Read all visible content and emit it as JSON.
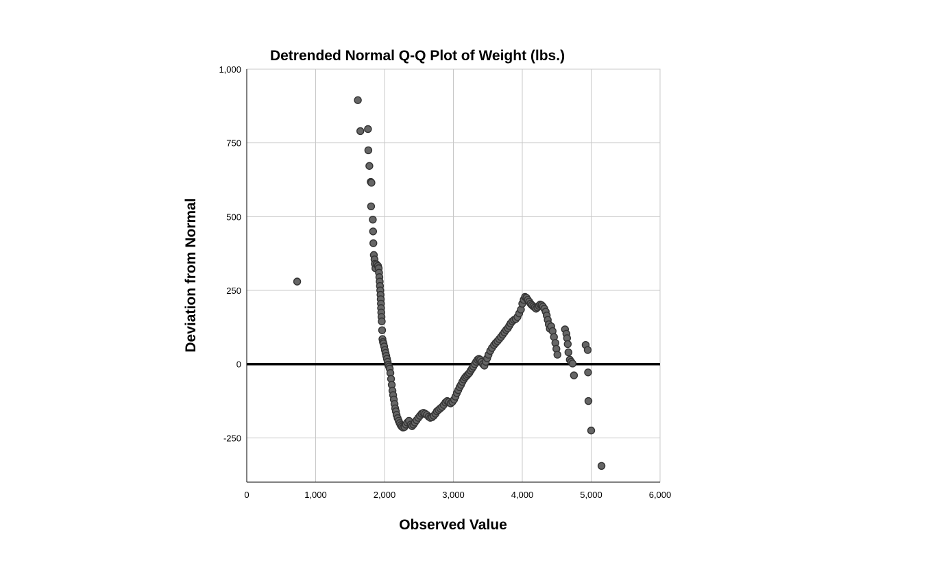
{
  "chart_data": {
    "type": "scatter",
    "title": "Detrended Normal Q-Q Plot of Weight (lbs.)",
    "xlabel": "Observed Value",
    "ylabel": "Deviation from Normal",
    "xlim": [
      0,
      6000
    ],
    "ylim": [
      -400,
      1000
    ],
    "xticks": [
      0,
      1000,
      2000,
      3000,
      4000,
      5000,
      6000
    ],
    "xtick_labels": [
      "0",
      "1,000",
      "2,000",
      "3,000",
      "4,000",
      "5,000",
      "6,000"
    ],
    "yticks": [
      -250,
      0,
      250,
      500,
      750,
      1000
    ],
    "ytick_labels": [
      "-250",
      "0",
      "250",
      "500",
      "750",
      "1,000"
    ],
    "grid": true,
    "reference_line_y": 0,
    "marker_color": "#666666",
    "marker_edge_color": "#333333",
    "points": [
      {
        "x": 732,
        "y": 280
      },
      {
        "x": 1613,
        "y": 895
      },
      {
        "x": 1649,
        "y": 790
      },
      {
        "x": 1760,
        "y": 797
      },
      {
        "x": 1765,
        "y": 725
      },
      {
        "x": 1780,
        "y": 672
      },
      {
        "x": 1800,
        "y": 618
      },
      {
        "x": 1810,
        "y": 615
      },
      {
        "x": 1805,
        "y": 535
      },
      {
        "x": 1830,
        "y": 490
      },
      {
        "x": 1834,
        "y": 450
      },
      {
        "x": 1838,
        "y": 410
      },
      {
        "x": 1845,
        "y": 370
      },
      {
        "x": 1855,
        "y": 355
      },
      {
        "x": 1860,
        "y": 340
      },
      {
        "x": 1868,
        "y": 325
      },
      {
        "x": 1885,
        "y": 338
      },
      {
        "x": 1905,
        "y": 333
      },
      {
        "x": 1915,
        "y": 325
      },
      {
        "x": 1920,
        "y": 310
      },
      {
        "x": 1925,
        "y": 295
      },
      {
        "x": 1930,
        "y": 280
      },
      {
        "x": 1934,
        "y": 265
      },
      {
        "x": 1938,
        "y": 250
      },
      {
        "x": 1942,
        "y": 235
      },
      {
        "x": 1945,
        "y": 220
      },
      {
        "x": 1948,
        "y": 205
      },
      {
        "x": 1950,
        "y": 190
      },
      {
        "x": 1953,
        "y": 175
      },
      {
        "x": 1956,
        "y": 160
      },
      {
        "x": 1960,
        "y": 145
      },
      {
        "x": 1965,
        "y": 115
      },
      {
        "x": 1970,
        "y": 85
      },
      {
        "x": 1978,
        "y": 75
      },
      {
        "x": 1985,
        "y": 70
      },
      {
        "x": 1995,
        "y": 60
      },
      {
        "x": 2005,
        "y": 48
      },
      {
        "x": 2015,
        "y": 38
      },
      {
        "x": 2025,
        "y": 28
      },
      {
        "x": 2035,
        "y": 18
      },
      {
        "x": 2045,
        "y": 8
      },
      {
        "x": 2055,
        "y": -2
      },
      {
        "x": 2065,
        "y": -8
      },
      {
        "x": 2075,
        "y": -15
      },
      {
        "x": 2085,
        "y": -30
      },
      {
        "x": 2095,
        "y": -50
      },
      {
        "x": 2105,
        "y": -70
      },
      {
        "x": 2115,
        "y": -90
      },
      {
        "x": 2125,
        "y": -105
      },
      {
        "x": 2135,
        "y": -120
      },
      {
        "x": 2145,
        "y": -135
      },
      {
        "x": 2155,
        "y": -150
      },
      {
        "x": 2165,
        "y": -160
      },
      {
        "x": 2175,
        "y": -172
      },
      {
        "x": 2190,
        "y": -183
      },
      {
        "x": 2205,
        "y": -192
      },
      {
        "x": 2220,
        "y": -200
      },
      {
        "x": 2235,
        "y": -207
      },
      {
        "x": 2250,
        "y": -212
      },
      {
        "x": 2270,
        "y": -215
      },
      {
        "x": 2290,
        "y": -213
      },
      {
        "x": 2310,
        "y": -205
      },
      {
        "x": 2330,
        "y": -198
      },
      {
        "x": 2355,
        "y": -192
      },
      {
        "x": 2380,
        "y": -205
      },
      {
        "x": 2400,
        "y": -210
      },
      {
        "x": 2420,
        "y": -205
      },
      {
        "x": 2440,
        "y": -198
      },
      {
        "x": 2465,
        "y": -190
      },
      {
        "x": 2490,
        "y": -182
      },
      {
        "x": 2515,
        "y": -175
      },
      {
        "x": 2540,
        "y": -168
      },
      {
        "x": 2565,
        "y": -165
      },
      {
        "x": 2590,
        "y": -168
      },
      {
        "x": 2615,
        "y": -172
      },
      {
        "x": 2640,
        "y": -178
      },
      {
        "x": 2665,
        "y": -182
      },
      {
        "x": 2690,
        "y": -180
      },
      {
        "x": 2715,
        "y": -175
      },
      {
        "x": 2740,
        "y": -168
      },
      {
        "x": 2760,
        "y": -160
      },
      {
        "x": 2785,
        "y": -155
      },
      {
        "x": 2810,
        "y": -150
      },
      {
        "x": 2835,
        "y": -145
      },
      {
        "x": 2860,
        "y": -138
      },
      {
        "x": 2885,
        "y": -130
      },
      {
        "x": 2910,
        "y": -125
      },
      {
        "x": 2935,
        "y": -128
      },
      {
        "x": 2960,
        "y": -133
      },
      {
        "x": 2985,
        "y": -128
      },
      {
        "x": 3010,
        "y": -120
      },
      {
        "x": 3030,
        "y": -110
      },
      {
        "x": 3050,
        "y": -98
      },
      {
        "x": 3070,
        "y": -88
      },
      {
        "x": 3090,
        "y": -78
      },
      {
        "x": 3110,
        "y": -70
      },
      {
        "x": 3130,
        "y": -60
      },
      {
        "x": 3150,
        "y": -52
      },
      {
        "x": 3170,
        "y": -45
      },
      {
        "x": 3190,
        "y": -40
      },
      {
        "x": 3210,
        "y": -35
      },
      {
        "x": 3230,
        "y": -30
      },
      {
        "x": 3250,
        "y": -22
      },
      {
        "x": 3270,
        "y": -15
      },
      {
        "x": 3290,
        "y": -8
      },
      {
        "x": 3310,
        "y": 0
      },
      {
        "x": 3330,
        "y": 8
      },
      {
        "x": 3350,
        "y": 15
      },
      {
        "x": 3370,
        "y": 18
      },
      {
        "x": 3390,
        "y": 15
      },
      {
        "x": 3410,
        "y": 8
      },
      {
        "x": 3430,
        "y": 0
      },
      {
        "x": 3450,
        "y": -5
      },
      {
        "x": 3470,
        "y": 8
      },
      {
        "x": 3490,
        "y": 20
      },
      {
        "x": 3510,
        "y": 32
      },
      {
        "x": 3535,
        "y": 45
      },
      {
        "x": 3560,
        "y": 55
      },
      {
        "x": 3590,
        "y": 65
      },
      {
        "x": 3615,
        "y": 72
      },
      {
        "x": 3640,
        "y": 78
      },
      {
        "x": 3665,
        "y": 85
      },
      {
        "x": 3690,
        "y": 92
      },
      {
        "x": 3715,
        "y": 100
      },
      {
        "x": 3740,
        "y": 108
      },
      {
        "x": 3765,
        "y": 116
      },
      {
        "x": 3790,
        "y": 122
      },
      {
        "x": 3810,
        "y": 130
      },
      {
        "x": 3830,
        "y": 138
      },
      {
        "x": 3855,
        "y": 145
      },
      {
        "x": 3880,
        "y": 150
      },
      {
        "x": 3905,
        "y": 153
      },
      {
        "x": 3930,
        "y": 160
      },
      {
        "x": 3955,
        "y": 172
      },
      {
        "x": 3980,
        "y": 185
      },
      {
        "x": 4000,
        "y": 205
      },
      {
        "x": 4020,
        "y": 218
      },
      {
        "x": 4040,
        "y": 228
      },
      {
        "x": 4060,
        "y": 225
      },
      {
        "x": 4080,
        "y": 218
      },
      {
        "x": 4100,
        "y": 212
      },
      {
        "x": 4120,
        "y": 205
      },
      {
        "x": 4140,
        "y": 200
      },
      {
        "x": 4160,
        "y": 196
      },
      {
        "x": 4180,
        "y": 192
      },
      {
        "x": 4200,
        "y": 188
      },
      {
        "x": 4220,
        "y": 192
      },
      {
        "x": 4240,
        "y": 198
      },
      {
        "x": 4260,
        "y": 202
      },
      {
        "x": 4280,
        "y": 200
      },
      {
        "x": 4300,
        "y": 195
      },
      {
        "x": 4320,
        "y": 188
      },
      {
        "x": 4340,
        "y": 178
      },
      {
        "x": 4355,
        "y": 165
      },
      {
        "x": 4370,
        "y": 150
      },
      {
        "x": 4385,
        "y": 135
      },
      {
        "x": 4400,
        "y": 120
      },
      {
        "x": 4420,
        "y": 128
      },
      {
        "x": 4440,
        "y": 112
      },
      {
        "x": 4460,
        "y": 92
      },
      {
        "x": 4480,
        "y": 72
      },
      {
        "x": 4495,
        "y": 52
      },
      {
        "x": 4510,
        "y": 32
      },
      {
        "x": 4620,
        "y": 118
      },
      {
        "x": 4640,
        "y": 103
      },
      {
        "x": 4650,
        "y": 88
      },
      {
        "x": 4660,
        "y": 68
      },
      {
        "x": 4670,
        "y": 40
      },
      {
        "x": 4690,
        "y": 15
      },
      {
        "x": 4710,
        "y": 8
      },
      {
        "x": 4730,
        "y": 2
      },
      {
        "x": 4750,
        "y": -38
      },
      {
        "x": 4920,
        "y": 65
      },
      {
        "x": 4950,
        "y": 48
      },
      {
        "x": 4955,
        "y": -28
      },
      {
        "x": 4960,
        "y": -125
      },
      {
        "x": 5000,
        "y": -225
      },
      {
        "x": 5150,
        "y": -345
      }
    ]
  }
}
